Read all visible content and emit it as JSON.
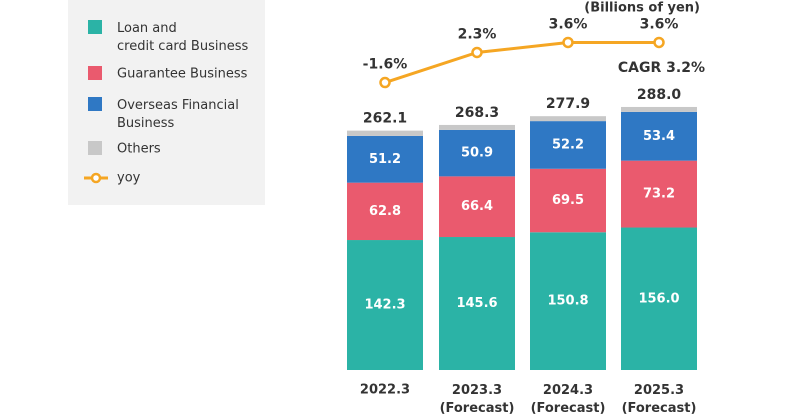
{
  "chart_data": {
    "type": "bar",
    "stacked": true,
    "unit_note": "(Billions of yen)",
    "annotation": "CAGR 3.2%",
    "categories": [
      "2022.3",
      "2023.3\n(Forecast)",
      "2024.3\n(Forecast)",
      "2025.3\n(Forecast)"
    ],
    "ylim": [
      0,
      300
    ],
    "series": [
      {
        "name": "Loan and\ncredit card Business",
        "color": "#2bb3a6",
        "values": [
          142.3,
          145.6,
          150.8,
          156
        ],
        "value_labels": [
          "142.3",
          "145.6",
          "150.8",
          "156.0"
        ]
      },
      {
        "name": "Guarantee Business",
        "color": "#ea5a6e",
        "values": [
          62.8,
          66.4,
          69.5,
          73.2
        ],
        "value_labels": [
          "62.8",
          "66.4",
          "69.5",
          "73.2"
        ]
      },
      {
        "name": "Overseas Financial\nBusiness",
        "color": "#2f78c4",
        "values": [
          51.2,
          50.9,
          52.2,
          53.4
        ],
        "value_labels": [
          "51.2",
          "50.9",
          "52.2",
          "53.4"
        ]
      },
      {
        "name": "Others",
        "color": "#c8c8c8",
        "values": [
          5.8,
          5.4,
          5.4,
          5.4
        ]
      }
    ],
    "totals": {
      "values": [
        262.1,
        268.3,
        277.9,
        288
      ],
      "value_labels": [
        "262.1",
        "268.3",
        "277.9",
        "288.0"
      ]
    },
    "line": {
      "type": "line",
      "name": "yoy",
      "color": "#f5a623",
      "axis": "y2",
      "values": [
        -1.6,
        2.3,
        3.6,
        3.6
      ],
      "value_labels": [
        "-1.6%",
        "2.3%",
        "3.6%",
        "3.6%"
      ]
    },
    "y2lim": [
      -4,
      6
    ]
  }
}
